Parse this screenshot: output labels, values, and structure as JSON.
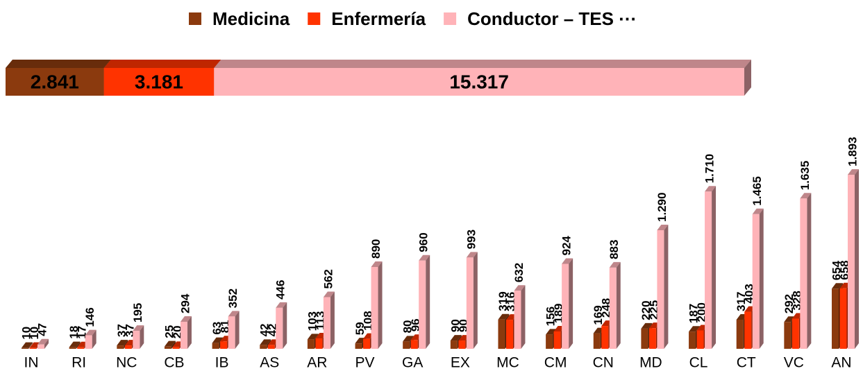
{
  "chart_data": [
    {
      "type": "stacked-bar",
      "values": [
        2841,
        3181,
        15317
      ],
      "value_labels": [
        "2.841",
        "3.181",
        "15.317"
      ],
      "colors": [
        "#8b3a0e",
        "#ff3300",
        "#ffb3b8"
      ]
    },
    {
      "type": "bar",
      "categories": [
        "IN",
        "RI",
        "NC",
        "CB",
        "IB",
        "AS",
        "AR",
        "PV",
        "GA",
        "EX",
        "MC",
        "CM",
        "CN",
        "MD",
        "CL",
        "CT",
        "VC",
        "AN"
      ],
      "legend": "top",
      "series": [
        {
          "name": "Medicina",
          "color": "#8b3a0e",
          "values": [
            10,
            18,
            37,
            25,
            63,
            42,
            103,
            59,
            80,
            90,
            319,
            156,
            169,
            220,
            187,
            317,
            292,
            654
          ]
        },
        {
          "name": "Enfermería",
          "color": "#ff3300",
          "values": [
            10,
            17,
            37,
            20,
            81,
            42,
            113,
            108,
            96,
            90,
            316,
            189,
            248,
            225,
            200,
            403,
            328,
            658
          ]
        },
        {
          "name": "Conductor – TES ···",
          "color": "#ffb3b8",
          "values": [
            47,
            146,
            195,
            294,
            352,
            446,
            562,
            890,
            960,
            993,
            632,
            924,
            883,
            1290,
            1710,
            1465,
            1635,
            1893
          ],
          "value_labels": [
            "47",
            "146",
            "195",
            "294",
            "352",
            "446",
            "562",
            "890",
            "960",
            "993",
            "632",
            "924",
            "883",
            "1.290",
            "1.710",
            "1.465",
            "1.635",
            "1.893"
          ]
        }
      ]
    }
  ]
}
